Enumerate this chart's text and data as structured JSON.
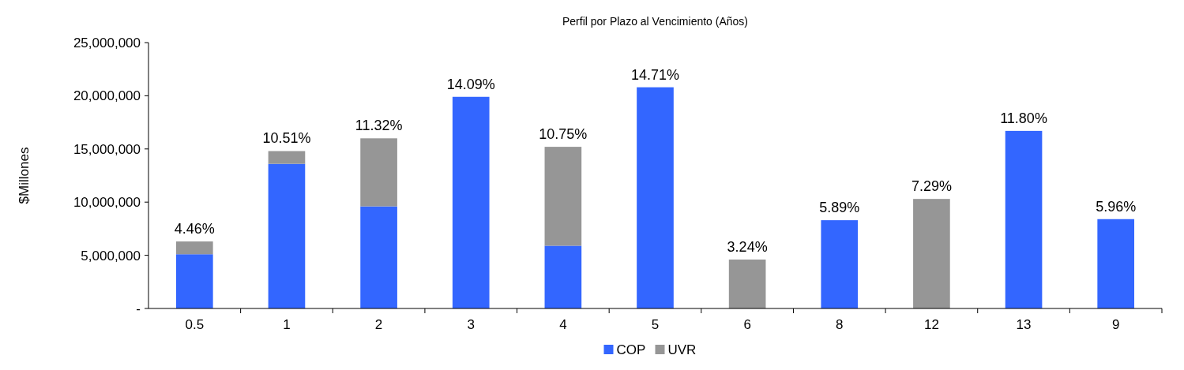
{
  "chart_data": {
    "type": "bar",
    "title": "Perfil por Plazo al Vencimiento (Años)",
    "ylabel": "$Millones",
    "categories": [
      "0.5",
      "1",
      "2",
      "3",
      "4",
      "5",
      "6",
      "8",
      "12",
      "13",
      "9"
    ],
    "series": [
      {
        "name": "COP",
        "color": "#3366ff",
        "values": [
          5100000,
          13600000,
          9600000,
          19900000,
          5900000,
          20800000,
          null,
          8300000,
          null,
          16700000,
          8400000
        ]
      },
      {
        "name": "UVR",
        "color": "#969696",
        "values": [
          1200000,
          1200000,
          6400000,
          null,
          9300000,
          null,
          4600000,
          null,
          10300000,
          null,
          null
        ]
      }
    ],
    "stacked": true,
    "ylim": [
      0,
      25000000
    ],
    "yticks": [
      {
        "value": 0,
        "label": "-"
      },
      {
        "value": 5000000,
        "label": "5,000,000"
      },
      {
        "value": 10000000,
        "label": "10,000,000"
      },
      {
        "value": 15000000,
        "label": "15,000,000"
      },
      {
        "value": 20000000,
        "label": "20,000,000"
      },
      {
        "value": 25000000,
        "label": "25,000,000"
      }
    ],
    "legend": "bottom",
    "annotations": [
      {
        "text": "4.46%",
        "x": "0.5",
        "y": 6300000
      },
      {
        "text": "10.51%",
        "x": "1",
        "y": 14800000
      },
      {
        "text": "11.32%",
        "x": "2",
        "y": 16000000
      },
      {
        "text": "14.09%",
        "x": "3",
        "y": 19900000
      },
      {
        "text": "10.75%",
        "x": "4",
        "y": 15200000
      },
      {
        "text": "14.71%",
        "x": "5",
        "y": 20800000
      },
      {
        "text": "3.24%",
        "x": "6",
        "y": 4600000
      },
      {
        "text": "5.89%",
        "x": "8",
        "y": 8300000
      },
      {
        "text": "7.29%",
        "x": "12",
        "y": 10300000
      },
      {
        "text": "11.80%",
        "x": "13",
        "y": 16700000
      },
      {
        "text": "5.96%",
        "x": "9",
        "y": 8400000
      }
    ]
  }
}
